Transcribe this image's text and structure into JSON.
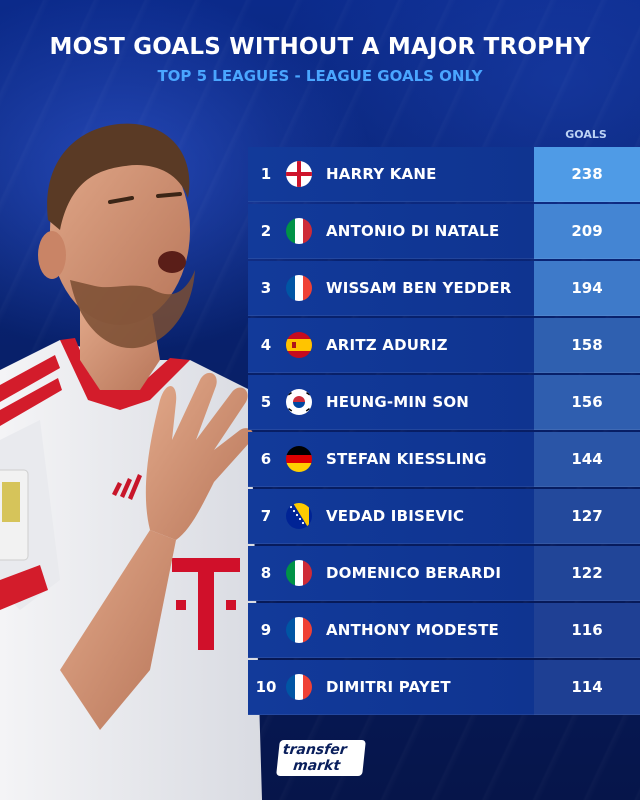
{
  "title": "MOST GOALS WITHOUT A MAJOR TROPHY",
  "subtitle": "TOP 5 LEAGUES - LEAGUE GOALS ONLY",
  "goals_header": "GOALS",
  "logo": {
    "line1": "transfer",
    "line2": "markt"
  },
  "colors": {
    "accent_blue": "#4aa6ff",
    "row_bg": "#123a9a",
    "goals_max": "#4f9be6",
    "goals_min": "#1e3f93"
  },
  "chart_data": {
    "type": "table",
    "title": "MOST GOALS WITHOUT A MAJOR TROPHY",
    "subtitle": "TOP 5 LEAGUES - LEAGUE GOALS ONLY",
    "columns": [
      "",
      "",
      "GOALS"
    ],
    "rows": [
      {
        "rank": "1",
        "flag": "england",
        "name": "HARRY KANE",
        "goals": 238
      },
      {
        "rank": "2",
        "flag": "italy",
        "name": "ANTONIO DI NATALE",
        "goals": 209
      },
      {
        "rank": "3",
        "flag": "france",
        "name": "WISSAM BEN YEDDER",
        "goals": 194
      },
      {
        "rank": "4",
        "flag": "spain",
        "name": "ARITZ ADURIZ",
        "goals": 158
      },
      {
        "rank": "5",
        "flag": "south-korea",
        "name": "HEUNG-MIN SON",
        "goals": 156
      },
      {
        "rank": "6",
        "flag": "germany",
        "name": "STEFAN KIESSLING",
        "goals": 144
      },
      {
        "rank": "7",
        "flag": "bosnia",
        "name": "VEDAD IBISEVIC",
        "goals": 127
      },
      {
        "rank": "8",
        "flag": "italy",
        "name": "DOMENICO BERARDI",
        "goals": 122
      },
      {
        "rank": "9",
        "flag": "france",
        "name": "ANTHONY MODESTE",
        "goals": 116
      },
      {
        "rank": "10",
        "flag": "france",
        "name": "DIMITRI PAYET",
        "goals": 114
      }
    ]
  }
}
